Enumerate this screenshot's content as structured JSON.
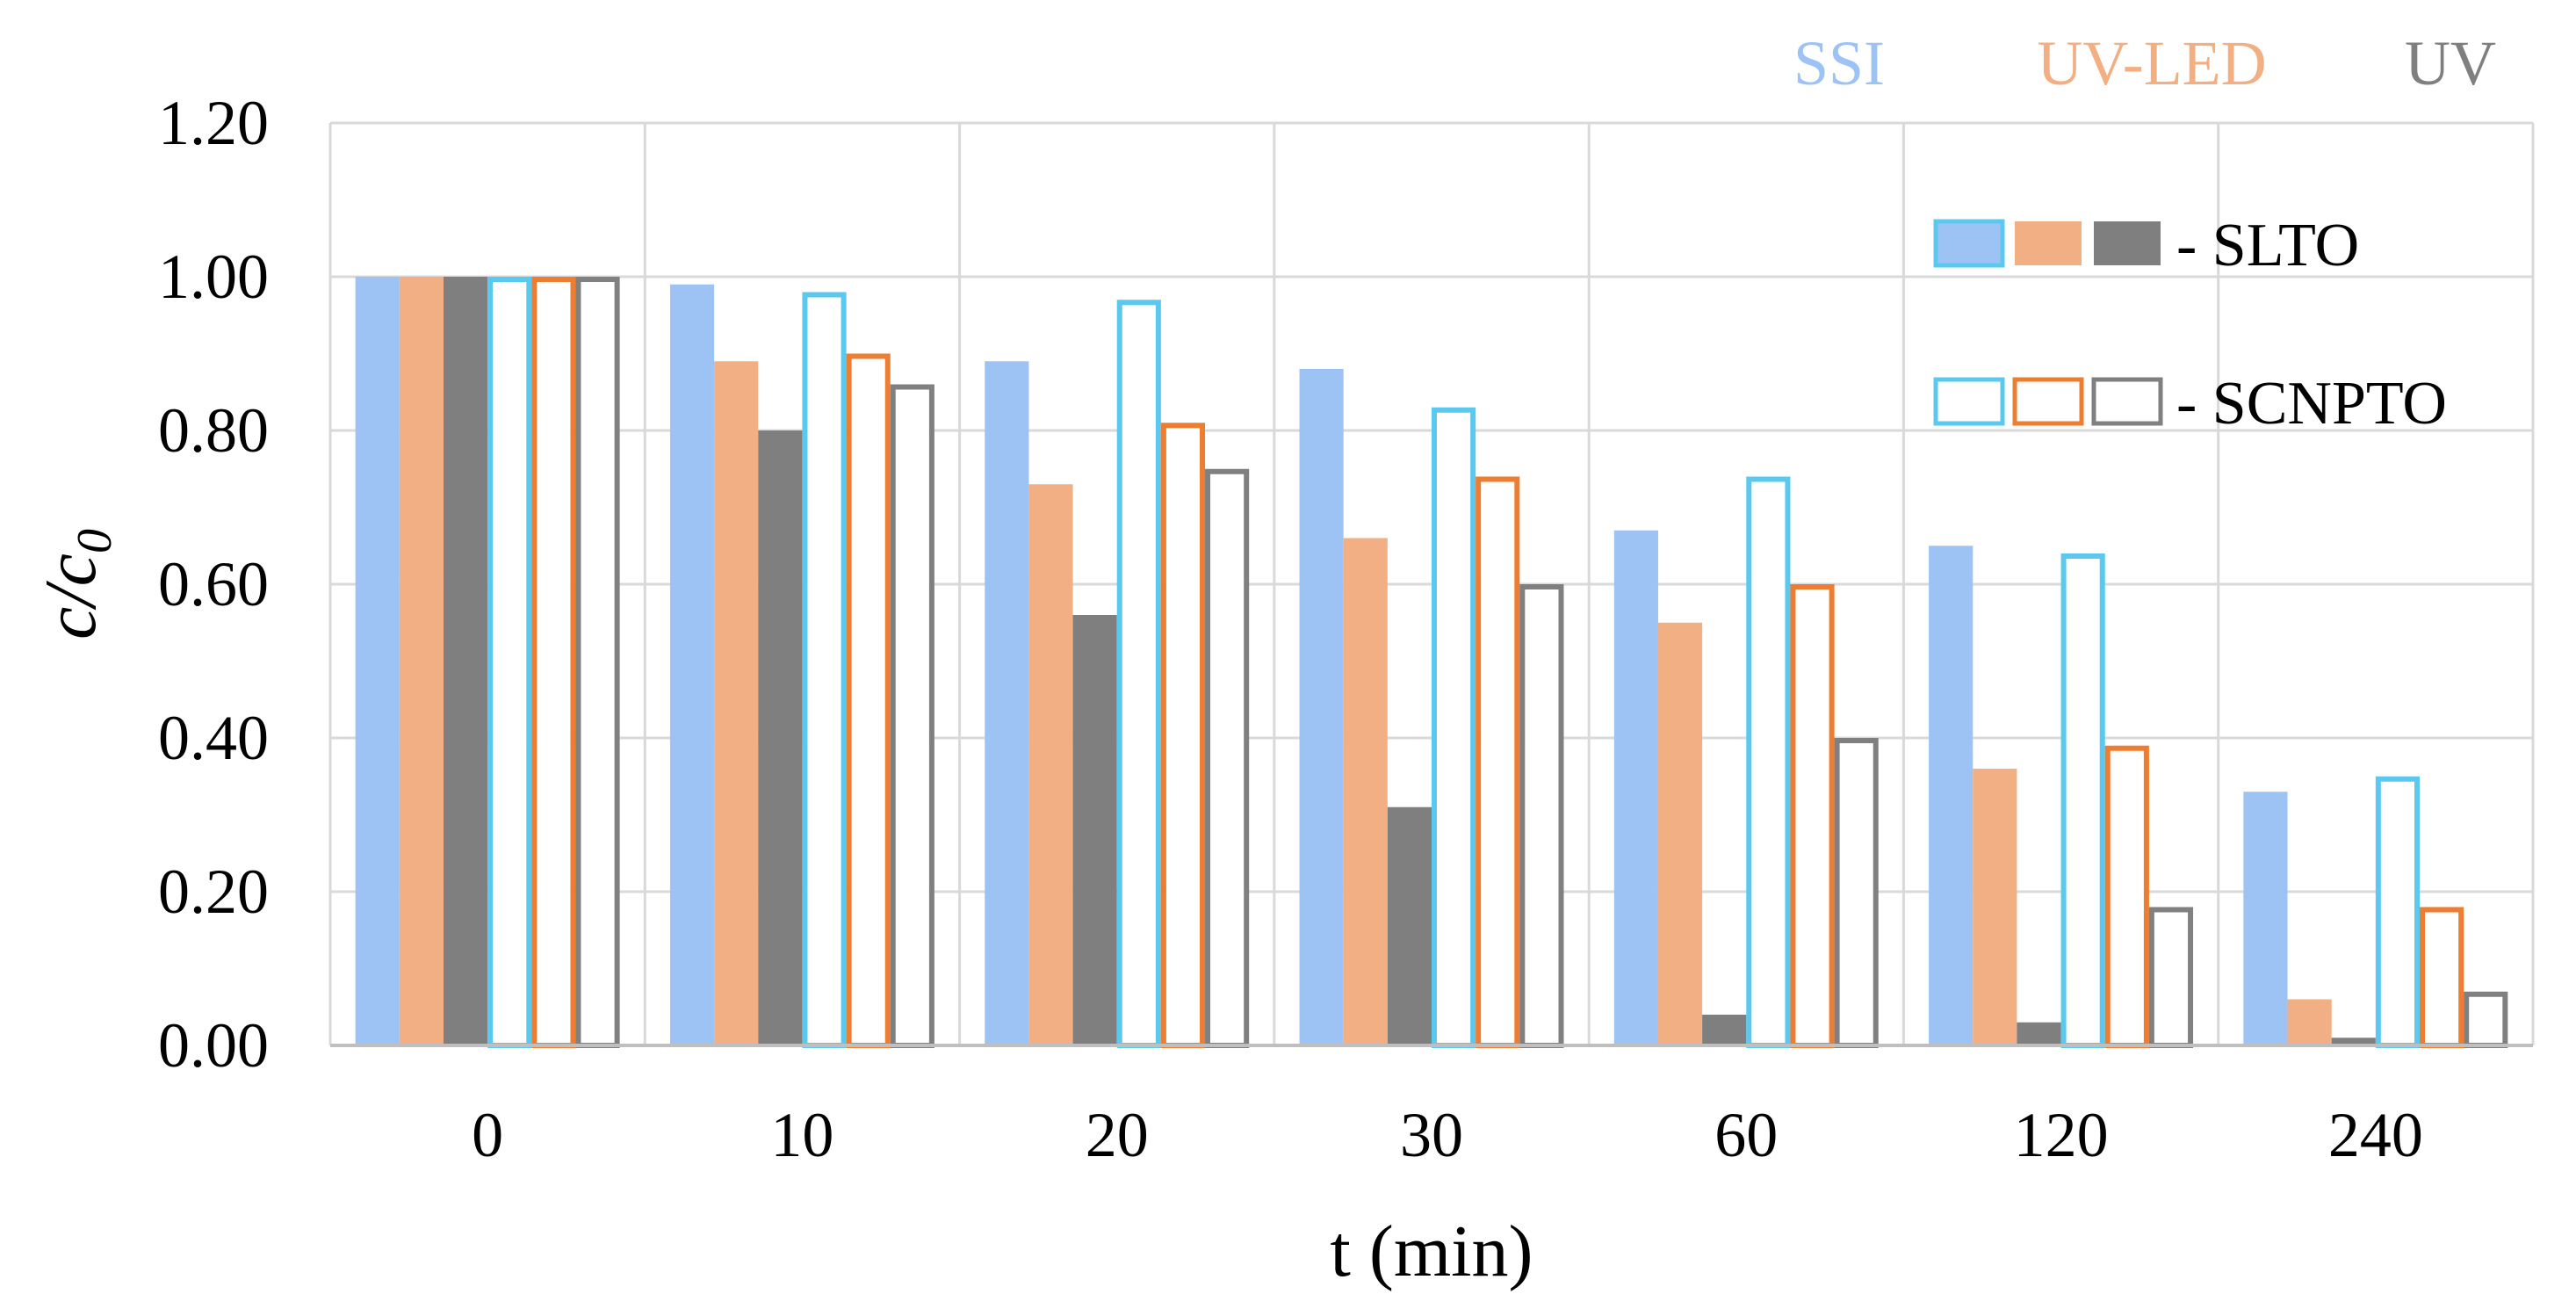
{
  "chart_data": {
    "type": "bar",
    "title": "",
    "xlabel": "t (min)",
    "ylabel_main": "c/c",
    "ylabel_sub": "0",
    "ylim": [
      0,
      1.2
    ],
    "yticks": [
      "0.00",
      "0.20",
      "0.40",
      "0.60",
      "0.80",
      "1.00",
      "1.20"
    ],
    "yticks_values": [
      0,
      0.2,
      0.4,
      0.6,
      0.8,
      1.0,
      1.2
    ],
    "categories": [
      "0",
      "10",
      "20",
      "30",
      "60",
      "120",
      "240"
    ],
    "grid": true,
    "legend_position": "top-right",
    "light_sources": [
      {
        "name": "SSI",
        "color": "#9DC3F5",
        "outline": "#5BC8F0"
      },
      {
        "name": "UV-LED",
        "color": "#F2AF84",
        "outline": "#ED7D31"
      },
      {
        "name": "UV",
        "color": "#7F7F7F",
        "outline": "#808080"
      }
    ],
    "material_legend": [
      {
        "label": "- SLTO",
        "style": "filled"
      },
      {
        "label": "- SCNPTO",
        "style": "outline"
      }
    ],
    "series": [
      {
        "name": "SSI - SLTO",
        "source": "SSI",
        "style": "filled",
        "values": [
          1.0,
          0.99,
          0.89,
          0.88,
          0.67,
          0.65,
          0.33
        ]
      },
      {
        "name": "UV-LED - SLTO",
        "source": "UV-LED",
        "style": "filled",
        "values": [
          1.0,
          0.89,
          0.73,
          0.66,
          0.55,
          0.36,
          0.06
        ]
      },
      {
        "name": "UV - SLTO",
        "source": "UV",
        "style": "filled",
        "values": [
          1.0,
          0.8,
          0.56,
          0.31,
          0.04,
          0.03,
          0.01
        ]
      },
      {
        "name": "SSI - SCNPTO",
        "source": "SSI",
        "style": "outline",
        "values": [
          1.0,
          0.98,
          0.97,
          0.83,
          0.74,
          0.64,
          0.35
        ]
      },
      {
        "name": "UV-LED - SCNPTO",
        "source": "UV-LED",
        "style": "outline",
        "values": [
          1.0,
          0.9,
          0.81,
          0.74,
          0.6,
          0.39,
          0.18
        ]
      },
      {
        "name": "UV - SCNPTO",
        "source": "UV",
        "style": "outline",
        "values": [
          1.0,
          0.86,
          0.75,
          0.6,
          0.4,
          0.18,
          0.07
        ]
      }
    ]
  }
}
